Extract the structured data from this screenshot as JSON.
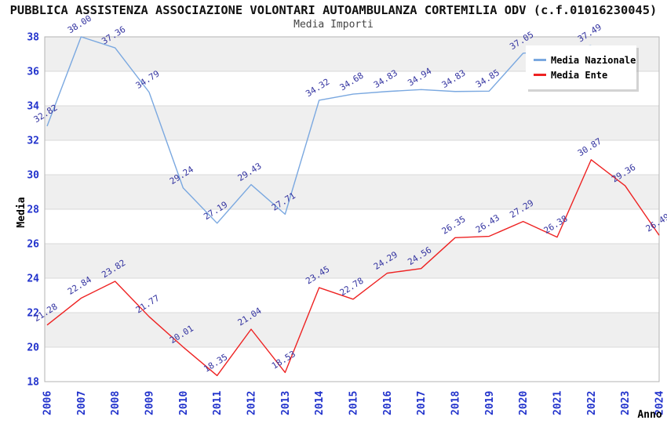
{
  "header": {
    "title": "PUBBLICA ASSISTENZA ASSOCIAZIONE VOLONTARI AUTOAMBULANZA CORTEMILIA ODV (c.f.01016230045)",
    "subtitle": "Media Importi"
  },
  "chart_data": {
    "type": "line",
    "title": "Media Importi",
    "xlabel": "Anno",
    "ylabel": "Media",
    "x": [
      2006,
      2007,
      2008,
      2009,
      2010,
      2011,
      2012,
      2013,
      2014,
      2015,
      2016,
      2017,
      2018,
      2019,
      2020,
      2021,
      2022,
      2023,
      2024
    ],
    "xlim": [
      2006,
      2024
    ],
    "ylim": [
      18,
      38
    ],
    "yticks": [
      18,
      20,
      22,
      24,
      26,
      28,
      30,
      32,
      34,
      36,
      38
    ],
    "grid": "horizontal-lines-with-alternating-bands",
    "legend_position": "top-right-inside",
    "colors": {
      "band": "#efefef",
      "grid": "#d9d9d9",
      "border": "#b3b3b3",
      "tick_labels": "#2233cc",
      "point_labels": "#3333a0",
      "nazionale_line": "#7aa8e0",
      "ente_line": "#ee2222"
    },
    "series": [
      {
        "name": "Media Nazionale",
        "color": "#7aa8e0",
        "x": [
          2006,
          2007,
          2008,
          2009,
          2010,
          2011,
          2012,
          2013,
          2014,
          2015,
          2016,
          2017,
          2018,
          2019,
          2020,
          2021,
          2022
        ],
        "values": [
          32.82,
          38.0,
          37.36,
          34.79,
          29.24,
          27.19,
          29.43,
          27.71,
          34.32,
          34.68,
          34.83,
          34.94,
          34.83,
          34.85,
          37.05,
          37.2,
          37.49
        ],
        "hidden_labels": [
          2021
        ],
        "estimated_points": [
          2021
        ]
      },
      {
        "name": "Media Ente",
        "color": "#ee2222",
        "x": [
          2006,
          2007,
          2008,
          2009,
          2010,
          2011,
          2012,
          2013,
          2014,
          2015,
          2016,
          2017,
          2018,
          2019,
          2020,
          2021,
          2022,
          2023,
          2024
        ],
        "values": [
          21.28,
          22.84,
          23.82,
          21.77,
          20.01,
          18.35,
          21.04,
          18.53,
          23.45,
          22.78,
          24.29,
          24.56,
          26.35,
          26.43,
          27.29,
          26.38,
          30.87,
          29.36,
          26.49
        ],
        "hidden_labels": []
      }
    ]
  }
}
